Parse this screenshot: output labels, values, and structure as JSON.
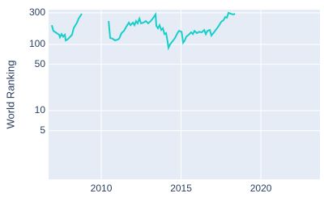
{
  "chart_data": {
    "type": "line",
    "y_label": "World Ranking",
    "log_y": true,
    "grid": true,
    "xlim": [
      2006.7,
      2023.7
    ],
    "xticks": [
      2010,
      2015,
      2020
    ],
    "ylim": [
      0.92,
      334
    ],
    "yticks": [
      5,
      10,
      50,
      100,
      300
    ],
    "series": [
      {
        "color": "#17cfc9",
        "x": [
          2006.9,
          2007.0,
          2007.21,
          2007.36,
          2007.41,
          2007.51,
          2007.61,
          2007.72,
          2007.77,
          2007.87,
          2008.02,
          2008.17,
          2008.27,
          2008.38,
          2008.48,
          2008.58,
          2008.68,
          2008.78,
          2009.5,
          2010.46,
          2010.56,
          2010.71,
          2010.86,
          2011.02,
          2011.12,
          2011.27,
          2011.42,
          2011.57,
          2011.73,
          2011.83,
          2011.98,
          2012.08,
          2012.18,
          2012.28,
          2012.39,
          2012.49,
          2012.64,
          2012.79,
          2012.94,
          2013.1,
          2013.25,
          2013.4,
          2013.45,
          2013.55,
          2013.65,
          2013.76,
          2013.86,
          2013.96,
          2014.06,
          2014.16,
          2014.21,
          2014.31,
          2014.47,
          2014.62,
          2014.77,
          2014.87,
          2015.03,
          2015.13,
          2015.23,
          2015.33,
          2015.48,
          2015.63,
          2015.74,
          2015.84,
          2015.99,
          2016.14,
          2016.29,
          2016.45,
          2016.55,
          2016.65,
          2016.8,
          2016.9,
          2017.06,
          2017.21,
          2017.36,
          2017.51,
          2017.66,
          2017.77,
          2017.87,
          2017.97,
          2018.12,
          2018.27,
          2018.38
        ],
        "values": [
          195,
          160,
          148,
          140,
          128,
          143,
          131,
          140,
          115,
          118,
          128,
          140,
          175,
          195,
          213,
          245,
          267,
          290,
          null,
          225,
          125,
          122,
          115,
          118,
          122,
          148,
          160,
          185,
          213,
          195,
          213,
          195,
          225,
          208,
          245,
          208,
          213,
          225,
          208,
          225,
          250,
          283,
          190,
          175,
          195,
          165,
          175,
          143,
          148,
          109,
          89,
          100,
          112,
          125,
          148,
          160,
          155,
          106,
          115,
          131,
          140,
          152,
          143,
          160,
          148,
          155,
          152,
          165,
          143,
          160,
          165,
          136,
          152,
          170,
          190,
          219,
          232,
          260,
          253,
          300,
          290,
          283,
          290
        ]
      }
    ]
  }
}
